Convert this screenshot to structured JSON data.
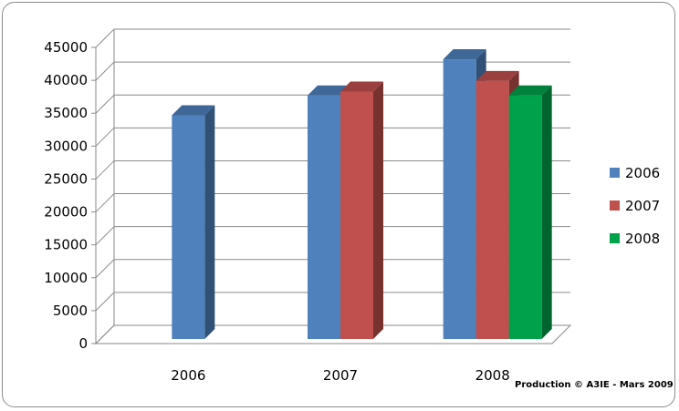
{
  "chart_data": {
    "type": "bar",
    "categories": [
      "2006",
      "2007",
      "2008"
    ],
    "series": [
      {
        "name": "2006",
        "values": [
          34000,
          37000,
          42500
        ],
        "color": "#4f81bd"
      },
      {
        "name": "2007",
        "values": [
          null,
          37600,
          39200
        ],
        "color": "#c0504d"
      },
      {
        "name": "2008",
        "values": [
          null,
          null,
          37000
        ],
        "color": "#00a14b"
      }
    ],
    "ylim": [
      0,
      45000
    ],
    "yticks": [
      0,
      5000,
      10000,
      15000,
      20000,
      25000,
      30000,
      35000,
      40000,
      45000
    ],
    "legend_position": "right",
    "grid": true,
    "style": "3d-column"
  },
  "credit": "Production © A3IE - Mars 2009"
}
